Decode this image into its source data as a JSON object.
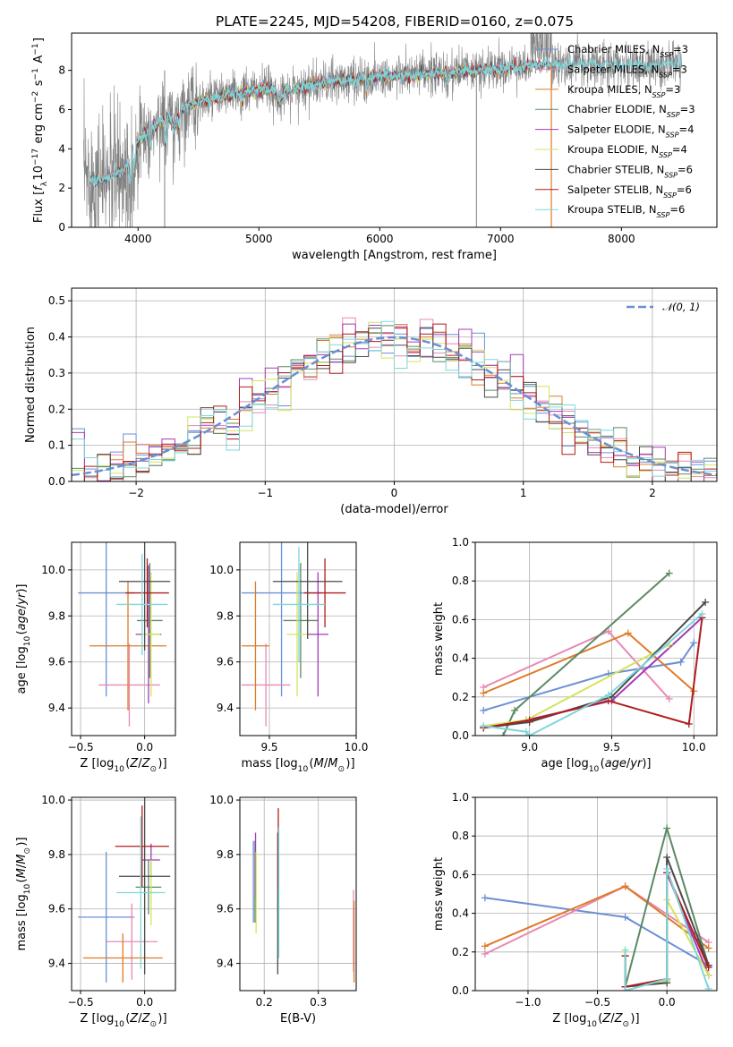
{
  "title": "PLATE=2245, MJD=54208, FIBERID=0160, z=0.075",
  "colors": {
    "Chabrier MILES": "#6b8fd6",
    "Salpeter MILES": "#e789b4",
    "Kroupa MILES": "#dd7b2a",
    "Chabrier ELODIE": "#5b8a63",
    "Salpeter ELODIE": "#a33bb5",
    "Kroupa ELODIE": "#d4e35b",
    "Chabrier STELIB": "#4a4a4a",
    "Salpeter STELIB": "#b01d1d",
    "Kroupa STELIB": "#7fd6dc",
    "data": "#808080",
    "gaussian": "#6a8fd6"
  },
  "chart_data": [
    {
      "id": "spectrum",
      "type": "line",
      "xlabel": "wavelength [Angstrom, rest frame]",
      "ylabel": "Flux [f_λ10^-17 erg cm^-2 s^-1 A^-1]",
      "xlim": [
        3450,
        8790
      ],
      "ylim": [
        0,
        9.9
      ],
      "xticks": [
        4000,
        5000,
        6000,
        7000,
        8000
      ],
      "yticks": [
        0,
        2,
        4,
        6,
        8
      ],
      "grid": false,
      "legend_placement": "right",
      "legend": [
        {
          "name": "Chabrier MILES",
          "label": "Chabrier MILES, N",
          "sub": "SSP",
          "suffix": "=3"
        },
        {
          "name": "Salpeter MILES",
          "label": "Salpeter MILES, N",
          "sub": "SSP",
          "suffix": "=3"
        },
        {
          "name": "Kroupa MILES",
          "label": "Kroupa MILES, N",
          "sub": "SSP",
          "suffix": "=3"
        },
        {
          "name": "Chabrier ELODIE",
          "label": "Chabrier ELODIE, N",
          "sub": "SSP",
          "suffix": "=3"
        },
        {
          "name": "Salpeter ELODIE",
          "label": "Salpeter ELODIE, N",
          "sub": "SSP",
          "suffix": "=4"
        },
        {
          "name": "Kroupa ELODIE",
          "label": "Kroupa ELODIE, N",
          "sub": "SSP",
          "suffix": "=4"
        },
        {
          "name": "Chabrier STELIB",
          "label": "Chabrier STELIB, N",
          "sub": "SSP",
          "suffix": "=6"
        },
        {
          "name": "Salpeter STELIB",
          "label": "Salpeter STELIB, N",
          "sub": "SSP",
          "suffix": "=6"
        },
        {
          "name": "Kroupa STELIB",
          "label": "Kroupa STELIB, N",
          "sub": "SSP",
          "suffix": "=6"
        }
      ],
      "continuum": {
        "x": [
          3550,
          3700,
          3900,
          4000,
          4200,
          4400,
          4700,
          5000,
          5300,
          5600,
          6000,
          6400,
          6800,
          7200,
          7400,
          7800,
          8200,
          8500
        ],
        "y": [
          2.5,
          2.4,
          3.0,
          4.4,
          5.5,
          6.2,
          6.7,
          7.0,
          7.1,
          7.4,
          7.7,
          7.8,
          8.0,
          8.2,
          8.3,
          8.3,
          8.2,
          8.4
        ]
      }
    },
    {
      "id": "residuals",
      "type": "histogram",
      "xlabel": "(data-model)/error",
      "ylabel": "Normed distribution",
      "xlim": [
        -2.5,
        2.5
      ],
      "ylim": [
        0,
        0.535
      ],
      "xticks": [
        -2,
        -1,
        0,
        1,
        2
      ],
      "yticks": [
        0,
        0.1,
        0.2,
        0.3,
        0.4,
        0.5
      ],
      "grid": true,
      "legend": [
        {
          "name": "gaussian",
          "label": "𝒩(0, 1)"
        }
      ]
    },
    {
      "id": "age-vs-Z",
      "type": "errorbar",
      "xlabel": "Z [log10(Z/Z⊙)]",
      "ylabel": "age  [log10(age/yr)]",
      "xlim": [
        -0.57,
        0.24
      ],
      "ylim": [
        9.28,
        10.12
      ],
      "xticks": [
        -0.5,
        0.0
      ],
      "yticks": [
        9.4,
        9.6,
        9.8,
        10.0
      ],
      "grid": true,
      "points": [
        {
          "name": "Chabrier MILES",
          "x": -0.3,
          "xerr": 0.22,
          "y": 9.9,
          "yerr": 0.45
        },
        {
          "name": "Salpeter MILES",
          "x": -0.12,
          "xerr": 0.24,
          "y": 9.5,
          "yerr": 0.18
        },
        {
          "name": "Kroupa MILES",
          "x": -0.13,
          "xerr": 0.3,
          "y": 9.67,
          "yerr": 0.28
        },
        {
          "name": "Chabrier ELODIE",
          "x": 0.04,
          "xerr": 0.1,
          "y": 9.78,
          "yerr": 0.25
        },
        {
          "name": "Salpeter ELODIE",
          "x": 0.03,
          "xerr": 0.1,
          "y": 9.72,
          "yerr": 0.3
        },
        {
          "name": "Kroupa ELODIE",
          "x": 0.05,
          "xerr": 0.07,
          "y": 9.72,
          "yerr": 0.27
        },
        {
          "name": "Chabrier STELIB",
          "x": 0.0,
          "xerr": 0.2,
          "y": 9.95,
          "yerr": 0.3
        },
        {
          "name": "Salpeter STELIB",
          "x": 0.02,
          "xerr": 0.17,
          "y": 9.9,
          "yerr": 0.15
        },
        {
          "name": "Kroupa STELIB",
          "x": -0.02,
          "xerr": 0.2,
          "y": 9.85,
          "yerr": 0.22
        }
      ]
    },
    {
      "id": "age-vs-mass",
      "type": "errorbar",
      "xlabel": "mass [log10(M/M⊙)]",
      "xlim": [
        9.33,
        10.0
      ],
      "ylim": [
        9.28,
        10.12
      ],
      "xticks": [
        9.5,
        10.0
      ],
      "yticks": [
        9.4,
        9.6,
        9.8,
        10.0
      ],
      "grid": true,
      "points": [
        {
          "name": "Chabrier MILES",
          "x": 9.57,
          "xerr": 0.23,
          "y": 9.9,
          "yerr": 0.45
        },
        {
          "name": "Salpeter MILES",
          "x": 9.48,
          "xerr": 0.14,
          "y": 9.5,
          "yerr": 0.18
        },
        {
          "name": "Kroupa MILES",
          "x": 9.42,
          "xerr": 0.08,
          "y": 9.67,
          "yerr": 0.28
        },
        {
          "name": "Chabrier ELODIE",
          "x": 9.68,
          "xerr": 0.1,
          "y": 9.78,
          "yerr": 0.25
        },
        {
          "name": "Salpeter ELODIE",
          "x": 9.78,
          "xerr": 0.06,
          "y": 9.72,
          "yerr": 0.27
        },
        {
          "name": "Kroupa ELODIE",
          "x": 9.66,
          "xerr": 0.06,
          "y": 9.72,
          "yerr": 0.27
        },
        {
          "name": "Chabrier STELIB",
          "x": 9.72,
          "xerr": 0.2,
          "y": 9.95,
          "yerr": 0.25
        },
        {
          "name": "Salpeter STELIB",
          "x": 9.82,
          "xerr": 0.12,
          "y": 9.9,
          "yerr": 0.15
        },
        {
          "name": "Kroupa STELIB",
          "x": 9.67,
          "xerr": 0.15,
          "y": 9.85,
          "yerr": 0.25
        }
      ]
    },
    {
      "id": "mass-weight-vs-age",
      "type": "line",
      "xlabel": "age  [log10(age/yr)]",
      "ylabel": "mass weight",
      "xlim": [
        8.67,
        10.14
      ],
      "ylim": [
        0,
        1.0
      ],
      "xticks": [
        9.0,
        9.5,
        10.0
      ],
      "yticks": [
        0.0,
        0.2,
        0.4,
        0.6,
        0.8,
        1.0
      ],
      "grid": true,
      "series": [
        {
          "name": "Chabrier MILES",
          "x": [
            8.72,
            9.48,
            9.92,
            10.0
          ],
          "y": [
            0.13,
            0.32,
            0.38,
            0.48
          ]
        },
        {
          "name": "Salpeter MILES",
          "x": [
            8.72,
            9.48,
            9.85
          ],
          "y": [
            0.25,
            0.54,
            0.19
          ]
        },
        {
          "name": "Kroupa MILES",
          "x": [
            8.72,
            9.6,
            10.0
          ],
          "y": [
            0.22,
            0.53,
            0.23
          ]
        },
        {
          "name": "Chabrier ELODIE",
          "x": [
            8.84,
            8.91,
            9.85
          ],
          "y": [
            0.0,
            0.13,
            0.84
          ]
        },
        {
          "name": "Salpeter ELODIE",
          "x": [
            8.72,
            8.98,
            9.5,
            10.05
          ],
          "y": [
            0.04,
            0.08,
            0.18,
            0.61
          ]
        },
        {
          "name": "Kroupa ELODIE",
          "x": [
            8.72,
            8.98,
            9.85
          ],
          "y": [
            0.05,
            0.08,
            0.47
          ]
        },
        {
          "name": "Chabrier STELIB",
          "x": [
            8.72,
            9.0,
            9.5,
            10.07
          ],
          "y": [
            0.04,
            0.07,
            0.2,
            0.69
          ]
        },
        {
          "name": "Salpeter STELIB",
          "x": [
            8.72,
            9.0,
            9.48,
            9.97,
            10.05
          ],
          "y": [
            0.04,
            0.08,
            0.18,
            0.06,
            0.61
          ]
        },
        {
          "name": "Kroupa STELIB",
          "x": [
            8.72,
            8.98,
            9.0,
            9.48,
            10.05
          ],
          "y": [
            0.05,
            0.02,
            0.0,
            0.21,
            0.63
          ]
        }
      ]
    },
    {
      "id": "mass-vs-Z",
      "type": "errorbar",
      "xlabel": "Z [log10(Z/Z⊙)]",
      "ylabel": "mass [log10(M/M⊙)]",
      "xlim": [
        -0.57,
        0.24
      ],
      "ylim": [
        9.3,
        10.01
      ],
      "xticks": [
        -0.5,
        0.0
      ],
      "yticks": [
        9.4,
        9.6,
        9.8,
        10.0
      ],
      "grid": true,
      "points": [
        {
          "name": "Chabrier MILES",
          "x": -0.3,
          "xerr": 0.22,
          "y": 9.57,
          "yerr": 0.24
        },
        {
          "name": "Salpeter MILES",
          "x": -0.1,
          "xerr": 0.2,
          "y": 9.48,
          "yerr": 0.14
        },
        {
          "name": "Kroupa MILES",
          "x": -0.17,
          "xerr": 0.31,
          "y": 9.42,
          "yerr": 0.09
        },
        {
          "name": "Chabrier ELODIE",
          "x": 0.03,
          "xerr": 0.1,
          "y": 9.68,
          "yerr": 0.1
        },
        {
          "name": "Salpeter ELODIE",
          "x": 0.05,
          "xerr": 0.07,
          "y": 9.78,
          "yerr": 0.06
        },
        {
          "name": "Kroupa ELODIE",
          "x": 0.05,
          "xerr": 0.06,
          "y": 9.66,
          "yerr": 0.12
        },
        {
          "name": "Chabrier STELIB",
          "x": 0.0,
          "xerr": 0.2,
          "y": 9.72,
          "yerr": 0.36
        },
        {
          "name": "Salpeter STELIB",
          "x": -0.02,
          "xerr": 0.21,
          "y": 9.83,
          "yerr": 0.15
        },
        {
          "name": "Kroupa STELIB",
          "x": -0.03,
          "xerr": 0.19,
          "y": 9.66,
          "yerr": 0.28
        }
      ]
    },
    {
      "id": "mass-vs-EBV",
      "type": "errorbar",
      "xlabel": "E(B-V)",
      "xlim": [
        0.155,
        0.37
      ],
      "ylim": [
        9.3,
        10.01
      ],
      "xticks": [
        0.2,
        0.3
      ],
      "yticks": [
        9.4,
        9.6,
        9.8,
        10.0
      ],
      "grid": true,
      "points": [
        {
          "name": "Chabrier MILES",
          "x": 0.18,
          "xerr": 0,
          "y": 9.7,
          "yerr": 0.15
        },
        {
          "name": "Salpeter MILES",
          "x": 0.365,
          "xerr": 0,
          "y": 9.52,
          "yerr": 0.15
        },
        {
          "name": "Kroupa MILES",
          "x": 0.366,
          "xerr": 0,
          "y": 9.48,
          "yerr": 0.15
        },
        {
          "name": "Chabrier ELODIE",
          "x": 0.183,
          "xerr": 0,
          "y": 9.7,
          "yerr": 0.15
        },
        {
          "name": "Salpeter ELODIE",
          "x": 0.184,
          "xerr": 0,
          "y": 9.76,
          "yerr": 0.12
        },
        {
          "name": "Kroupa ELODIE",
          "x": 0.185,
          "xerr": 0,
          "y": 9.66,
          "yerr": 0.15
        },
        {
          "name": "Chabrier STELIB",
          "x": 0.225,
          "xerr": 0,
          "y": 9.62,
          "yerr": 0.26
        },
        {
          "name": "Salpeter STELIB",
          "x": 0.226,
          "xerr": 0,
          "y": 9.82,
          "yerr": 0.15
        },
        {
          "name": "Kroupa STELIB",
          "x": 0.227,
          "xerr": 0,
          "y": 9.66,
          "yerr": 0.24
        }
      ]
    },
    {
      "id": "mass-weight-vs-Z",
      "type": "line",
      "xlabel": "Z [log10(Z/Z⊙)]",
      "ylabel": "mass weight",
      "xlim": [
        -1.38,
        0.36
      ],
      "ylim": [
        0,
        1.0
      ],
      "xticks": [
        -1.0,
        -0.5,
        0.0
      ],
      "yticks": [
        0.0,
        0.2,
        0.4,
        0.6,
        0.8,
        1.0
      ],
      "grid": true,
      "series": [
        {
          "name": "Chabrier MILES",
          "x": [
            -1.31,
            -0.3,
            0.3
          ],
          "y": [
            0.48,
            0.38,
            0.13
          ]
        },
        {
          "name": "Salpeter MILES",
          "x": [
            -1.31,
            -0.3,
            0.3
          ],
          "y": [
            0.19,
            0.54,
            0.25
          ]
        },
        {
          "name": "Kroupa MILES",
          "x": [
            -1.31,
            -0.3,
            0.3
          ],
          "y": [
            0.23,
            0.54,
            0.22
          ]
        },
        {
          "name": "Chabrier ELODIE",
          "x": [
            -0.3,
            0.0,
            0.3
          ],
          "y": [
            0.02,
            0.84,
            0.13
          ]
        },
        {
          "name": "Salpeter ELODIE",
          "x": [
            -0.3,
            -0.3,
            0.0,
            0.0,
            0.3
          ],
          "y": [
            0.18,
            0.02,
            0.05,
            0.61,
            0.08
          ]
        },
        {
          "name": "Kroupa ELODIE",
          "x": [
            -0.3,
            -0.3,
            0.0,
            0.0,
            0.3
          ],
          "y": [
            0.2,
            0.02,
            0.05,
            0.47,
            0.08
          ]
        },
        {
          "name": "Chabrier STELIB",
          "x": [
            -0.3,
            -0.3,
            0.0,
            0.0,
            0.3
          ],
          "y": [
            0.18,
            0.02,
            0.04,
            0.69,
            0.13
          ]
        },
        {
          "name": "Salpeter STELIB",
          "x": [
            -0.3,
            -0.3,
            0.0,
            0.0,
            0.3
          ],
          "y": [
            0.18,
            0.02,
            0.06,
            0.61,
            0.12
          ]
        },
        {
          "name": "Kroupa STELIB",
          "x": [
            -0.3,
            -0.3,
            0.0,
            0.0,
            0.3
          ],
          "y": [
            0.21,
            0.0,
            0.06,
            0.63,
            0.01
          ]
        }
      ]
    }
  ]
}
